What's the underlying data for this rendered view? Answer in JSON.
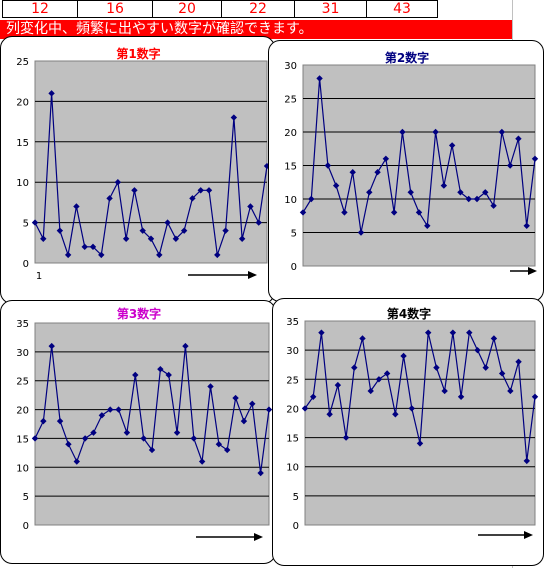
{
  "numbers": [
    "12",
    "16",
    "20",
    "22",
    "31",
    "43"
  ],
  "banner_text": "列変化中、頻繁に出やすい数字が確認できます。",
  "colors": {
    "banner": "#ff0000",
    "plot_bg": "#c0c0c0",
    "series": "#000080"
  },
  "chart_data": [
    {
      "type": "line",
      "title": "第1数字",
      "title_color": "#ff0000",
      "ylim": [
        0,
        25
      ],
      "yticks": [
        "0",
        "5",
        "10",
        "15",
        "20",
        "25"
      ],
      "xticks": [
        "1"
      ],
      "grid": true,
      "legend": "none",
      "values": [
        5,
        3,
        21,
        4,
        1,
        7,
        2,
        2,
        1,
        8,
        10,
        3,
        9,
        4,
        3,
        1,
        5,
        3,
        4,
        8,
        9,
        9,
        1,
        4,
        18,
        3,
        7,
        5,
        12
      ]
    },
    {
      "type": "line",
      "title": "第2数字",
      "title_color": "#000080",
      "ylim": [
        0,
        30
      ],
      "yticks": [
        "0",
        "5",
        "10",
        "15",
        "20",
        "25",
        "30"
      ],
      "grid": true,
      "legend": "none",
      "values": [
        8,
        10,
        28,
        15,
        12,
        8,
        14,
        5,
        11,
        14,
        16,
        8,
        20,
        11,
        8,
        6,
        20,
        12,
        18,
        11,
        10,
        10,
        11,
        9,
        20,
        15,
        19,
        6,
        16
      ]
    },
    {
      "type": "line",
      "title": "第3数字",
      "title_color": "#cc00cc",
      "ylim": [
        0,
        35
      ],
      "yticks": [
        "0",
        "5",
        "10",
        "15",
        "20",
        "25",
        "30",
        "35"
      ],
      "grid": true,
      "legend": "none",
      "values": [
        15,
        18,
        31,
        18,
        14,
        11,
        15,
        16,
        19,
        20,
        20,
        16,
        26,
        15,
        13,
        27,
        26,
        16,
        31,
        15,
        11,
        24,
        14,
        13,
        22,
        18,
        21,
        9,
        20
      ]
    },
    {
      "type": "line",
      "title": "第4数字",
      "title_color": "#000000",
      "ylim": [
        0,
        35
      ],
      "yticks": [
        "0",
        "5",
        "10",
        "15",
        "20",
        "25",
        "30",
        "35"
      ],
      "grid": true,
      "legend": "none",
      "values": [
        20,
        22,
        33,
        19,
        24,
        15,
        27,
        32,
        23,
        25,
        26,
        19,
        29,
        20,
        14,
        33,
        27,
        23,
        33,
        22,
        33,
        30,
        27,
        32,
        26,
        23,
        28,
        11,
        22
      ]
    }
  ]
}
